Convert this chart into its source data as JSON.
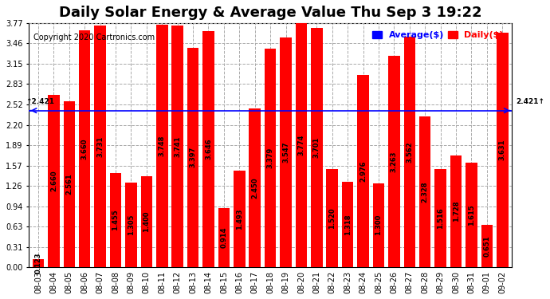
{
  "title": "Daily Solar Energy & Average Value Thu Sep 3 19:22",
  "copyright": "Copyright 2020 Cartronics.com",
  "legend_average": "Average($)",
  "legend_daily": "Daily($)",
  "average_value": 2.421,
  "categories": [
    "08-03",
    "08-04",
    "08-05",
    "08-06",
    "08-07",
    "08-08",
    "08-09",
    "08-10",
    "08-11",
    "08-12",
    "08-13",
    "08-14",
    "08-15",
    "08-16",
    "08-17",
    "08-18",
    "08-19",
    "08-20",
    "08-21",
    "08-22",
    "08-23",
    "08-24",
    "08-25",
    "08-26",
    "08-27",
    "08-28",
    "08-29",
    "08-30",
    "08-31",
    "09-01",
    "09-02"
  ],
  "values": [
    0.123,
    2.66,
    2.561,
    3.66,
    3.731,
    1.455,
    1.305,
    1.4,
    3.748,
    3.741,
    3.397,
    3.646,
    0.914,
    1.493,
    2.45,
    3.379,
    3.547,
    3.774,
    3.701,
    1.52,
    1.318,
    2.976,
    1.3,
    3.263,
    3.562,
    2.328,
    1.516,
    1.728,
    1.615,
    0.651,
    3.631
  ],
  "ylim": [
    0.0,
    3.77
  ],
  "yticks": [
    0.0,
    0.31,
    0.63,
    0.94,
    1.26,
    1.57,
    1.89,
    2.2,
    2.52,
    2.83,
    3.15,
    3.46,
    3.77
  ],
  "bar_color": "#ff0000",
  "avg_line_color": "#0000ff",
  "background_color": "#ffffff",
  "grid_color": "#aaaaaa",
  "title_fontsize": 13,
  "tick_fontsize": 7,
  "value_fontsize": 6
}
